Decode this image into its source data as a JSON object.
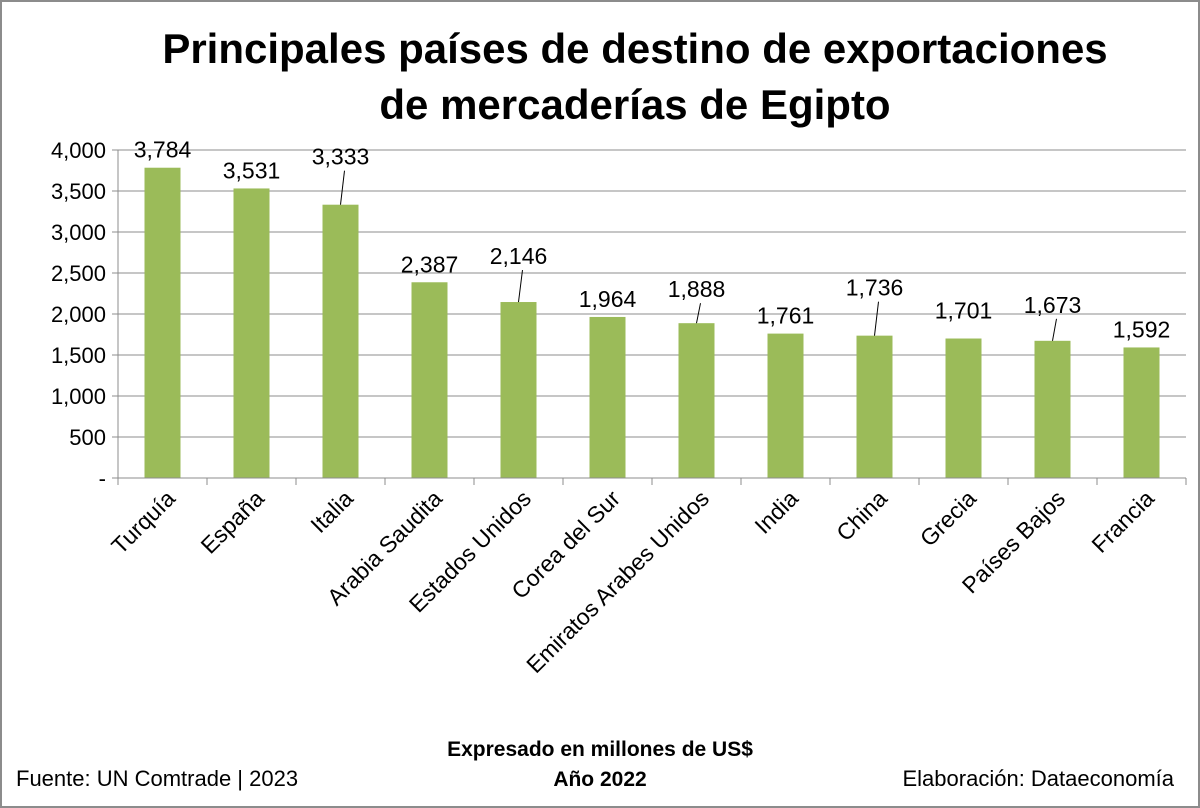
{
  "chart_data": {
    "type": "bar",
    "title_lines": [
      "Principales países de destino de exportaciones",
      "de mercaderías de Egipto"
    ],
    "categories": [
      "Turquía",
      "España",
      "Italia",
      "Arabia Saudita",
      "Estados Unidos",
      "Corea del Sur",
      "Emiratos Arabes Unidos",
      "India",
      "China",
      "Grecia",
      "Países Bajos",
      "Francia"
    ],
    "values": [
      3784,
      3531,
      3333,
      2387,
      2146,
      1964,
      1888,
      1761,
      1736,
      1701,
      1673,
      1592
    ],
    "value_labels": [
      "3,784",
      "3,531",
      "3,333",
      "2,387",
      "2,146",
      "1,964",
      "1,888",
      "1,761",
      "1,736",
      "1,701",
      "1,673",
      "1,592"
    ],
    "y_ticks": [
      0,
      500,
      1000,
      1500,
      2000,
      2500,
      3000,
      3500,
      4000
    ],
    "y_tick_labels": [
      "-",
      "500",
      "1,000",
      "1,500",
      "2,000",
      "2,500",
      "3,000",
      "3,500",
      "4,000"
    ],
    "ylim": [
      0,
      4000
    ],
    "grid": true,
    "bar_color": "#9bbb59",
    "subtitle_lines": [
      "Expresado en millones de US$",
      "Año 2022"
    ]
  },
  "footer": {
    "source": "Fuente: UN Comtrade | 2023",
    "credit": "Elaboración: Dataeconomía"
  }
}
